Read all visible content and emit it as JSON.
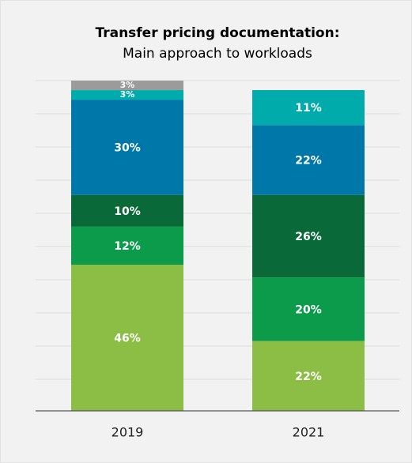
{
  "chart_data": {
    "type": "stacked_bar",
    "title": "Transfer pricing documentation:",
    "subtitle": "Main approach to workloads",
    "categories": [
      "2019",
      "2021"
    ],
    "series": [
      {
        "color": "#8cbd44",
        "values": [
          46,
          22
        ]
      },
      {
        "color": "#0b9b4a",
        "values": [
          12,
          20
        ]
      },
      {
        "color": "#0a6938",
        "values": [
          10,
          26
        ]
      },
      {
        "color": "#0077a9",
        "values": [
          30,
          22
        ]
      },
      {
        "color": "#00abab",
        "values": [
          3,
          11
        ]
      },
      {
        "color": "#9b9b9b",
        "values": [
          3,
          null
        ]
      }
    ],
    "value_labels": [
      [
        "46%",
        "22%"
      ],
      [
        "12%",
        "20%"
      ],
      [
        "10%",
        "26%"
      ],
      [
        "30%",
        "22%"
      ],
      [
        "3%",
        "11%"
      ],
      [
        "3%",
        null
      ]
    ],
    "ylim": [
      0,
      104
    ]
  }
}
